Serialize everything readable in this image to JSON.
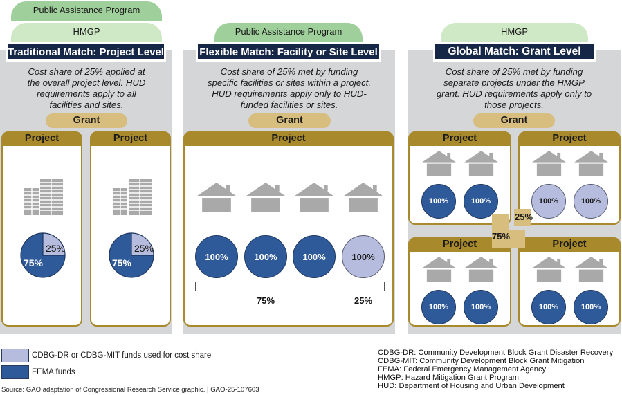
{
  "colors": {
    "fema": "#2f5a9a",
    "cdbg": "#b6bcdd",
    "title_bg": "#152647",
    "project_gold": "#a8892c",
    "grant_tan": "#d7bd7e",
    "pap_green": "#9fcf9a",
    "hmgp_green": "#cfe8c6",
    "panel_gray": "#d5d6d8"
  },
  "panels": [
    {
      "tabs": [
        "Public Assistance Program",
        "HMGP"
      ],
      "title": "Traditional Match: Project Level",
      "description": "Cost share of 25% applied at the overall project level. HUD requirements apply to all facilities and sites.",
      "grant_label": "Grant",
      "projects": [
        {
          "label": "Project",
          "icon": "building-icon",
          "pie": {
            "fema_pct": 75,
            "cdbg_pct": 25,
            "fema_label": "75%",
            "cdbg_label": "25%"
          }
        },
        {
          "label": "Project",
          "icon": "building-icon",
          "pie": {
            "fema_pct": 75,
            "cdbg_pct": 25,
            "fema_label": "75%",
            "cdbg_label": "25%"
          }
        }
      ]
    },
    {
      "tabs": [
        "Public Assistance Program"
      ],
      "title": "Flexible Match: Facility or Site Level",
      "description": "Cost share of 25% met by funding specific facilities or sites within a project. HUD requirements apply only to HUD-funded facilities or sites.",
      "grant_label": "Grant",
      "project_label": "Project",
      "sites": [
        {
          "icon": "house-icon",
          "value": "100%",
          "fund": "fema"
        },
        {
          "icon": "house-icon",
          "value": "100%",
          "fund": "fema"
        },
        {
          "icon": "house-icon",
          "value": "100%",
          "fund": "fema"
        },
        {
          "icon": "house-icon",
          "value": "100%",
          "fund": "cdbg"
        }
      ],
      "brackets": [
        "75%",
        "25%"
      ]
    },
    {
      "tabs": [
        "HMGP"
      ],
      "title": "Global Match: Grant Level",
      "description": "Cost share of 25% met by funding separate projects under the HMGP grant. HUD requirements apply only to those projects.",
      "grant_label": "Grant",
      "projects": [
        {
          "label": "Project",
          "sites": [
            {
              "value": "100%",
              "fund": "fema"
            },
            {
              "value": "100%",
              "fund": "fema"
            }
          ]
        },
        {
          "label": "Project",
          "sites": [
            {
              "value": "100%",
              "fund": "cdbg"
            },
            {
              "value": "100%",
              "fund": "cdbg"
            }
          ]
        },
        {
          "label": "Project",
          "sites": [
            {
              "value": "100%",
              "fund": "fema"
            },
            {
              "value": "100%",
              "fund": "fema"
            }
          ]
        },
        {
          "label": "Project",
          "sites": [
            {
              "value": "100%",
              "fund": "fema"
            },
            {
              "value": "100%",
              "fund": "fema"
            }
          ]
        }
      ],
      "connector_labels": {
        "cdbg": "25%",
        "fema": "75%"
      }
    }
  ],
  "legend": [
    {
      "label": "CDBG-DR or CDBG-MIT funds used for cost share",
      "fund": "cdbg"
    },
    {
      "label": "FEMA funds",
      "fund": "fema"
    }
  ],
  "abbreviations": [
    "CDBG-DR: Community Development Block Grant Disaster Recovery",
    "CDBG-MIT: Community Development Block Grant Mitigation",
    "FEMA: Federal Emergency Management Agency",
    "HMGP: Hazard Mitigation Grant Program",
    "HUD: Department of Housing and Urban Development"
  ],
  "source": "Source: GAO adaptation of Congressional Research Service graphic.  |  GAO-25-107603"
}
